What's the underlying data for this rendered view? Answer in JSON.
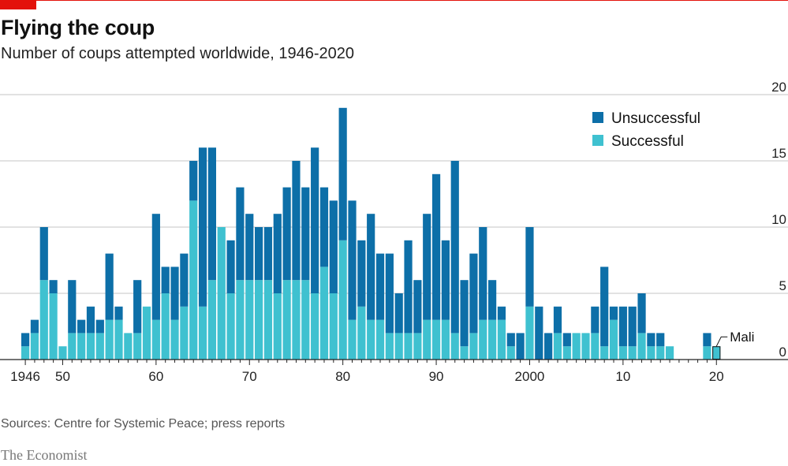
{
  "header": {
    "title": "Flying the coup",
    "subtitle": "Number of coups attempted worldwide, 1946-2020"
  },
  "footer": {
    "source": "Sources: Centre for Systemic Peace; press reports",
    "brand": "The Economist"
  },
  "colors": {
    "unsuccessful": "#0d6fa8",
    "successful": "#3fc1d0",
    "accent": "#e3120b",
    "grid": "#c6c6c6",
    "axis": "#222222"
  },
  "chart_data": {
    "type": "bar",
    "stacked": true,
    "title": "Flying the coup",
    "subtitle": "Number of coups attempted worldwide, 1946-2020",
    "xlabel": "",
    "ylabel": "",
    "ylim": [
      0,
      20
    ],
    "yticks": [
      0,
      5,
      10,
      15,
      20
    ],
    "y_axis_side": "right",
    "grid": true,
    "legend_position": "top-right",
    "x_ticks": [
      {
        "year": 1946,
        "label": "1946"
      },
      {
        "year": 1950,
        "label": "50"
      },
      {
        "year": 1960,
        "label": "60"
      },
      {
        "year": 1970,
        "label": "70"
      },
      {
        "year": 1980,
        "label": "80"
      },
      {
        "year": 1990,
        "label": "90"
      },
      {
        "year": 2000,
        "label": "2000"
      },
      {
        "year": 2010,
        "label": "10"
      },
      {
        "year": 2020,
        "label": "20"
      }
    ],
    "categories": [
      1946,
      1947,
      1948,
      1949,
      1950,
      1951,
      1952,
      1953,
      1954,
      1955,
      1956,
      1957,
      1958,
      1959,
      1960,
      1961,
      1962,
      1963,
      1964,
      1965,
      1966,
      1967,
      1968,
      1969,
      1970,
      1971,
      1972,
      1973,
      1974,
      1975,
      1976,
      1977,
      1978,
      1979,
      1980,
      1981,
      1982,
      1983,
      1984,
      1985,
      1986,
      1987,
      1988,
      1989,
      1990,
      1991,
      1992,
      1993,
      1994,
      1995,
      1996,
      1997,
      1998,
      1999,
      2000,
      2001,
      2002,
      2003,
      2004,
      2005,
      2006,
      2007,
      2008,
      2009,
      2010,
      2011,
      2012,
      2013,
      2014,
      2015,
      2016,
      2017,
      2018,
      2019,
      2020
    ],
    "series": [
      {
        "name": "Successful",
        "values": [
          1,
          2,
          6,
          5,
          1,
          2,
          2,
          2,
          2,
          3,
          3,
          2,
          2,
          4,
          3,
          5,
          3,
          4,
          12,
          4,
          6,
          10,
          5,
          6,
          6,
          6,
          6,
          5,
          6,
          6,
          6,
          5,
          7,
          5,
          9,
          3,
          4,
          3,
          3,
          2,
          2,
          2,
          2,
          3,
          3,
          3,
          2,
          1,
          2,
          3,
          3,
          3,
          1,
          0,
          4,
          0,
          0,
          2,
          1,
          2,
          2,
          2,
          1,
          3,
          1,
          1,
          2,
          1,
          1,
          1,
          0,
          0,
          0,
          1,
          1
        ]
      },
      {
        "name": "Unsuccessful",
        "values": [
          1,
          1,
          4,
          1,
          0,
          4,
          1,
          2,
          1,
          5,
          1,
          0,
          4,
          0,
          8,
          2,
          4,
          4,
          3,
          12,
          10,
          -1,
          4,
          7,
          5,
          4,
          4,
          6,
          7,
          9,
          7,
          11,
          6,
          7,
          10,
          9,
          5,
          8,
          5,
          6,
          3,
          7,
          4,
          8,
          11,
          6,
          13,
          5,
          6,
          7,
          3,
          1,
          1,
          2,
          6,
          4,
          2,
          2,
          1,
          0,
          0,
          2,
          6,
          1,
          3,
          3,
          3,
          1,
          1,
          0,
          0,
          0,
          0,
          1,
          0
        ]
      }
    ],
    "annotations": [
      {
        "year": 2020,
        "label": "Mali"
      }
    ]
  },
  "legend": {
    "items": [
      {
        "label": "Unsuccessful",
        "color_key": "unsuccessful"
      },
      {
        "label": "Successful",
        "color_key": "successful"
      }
    ]
  }
}
